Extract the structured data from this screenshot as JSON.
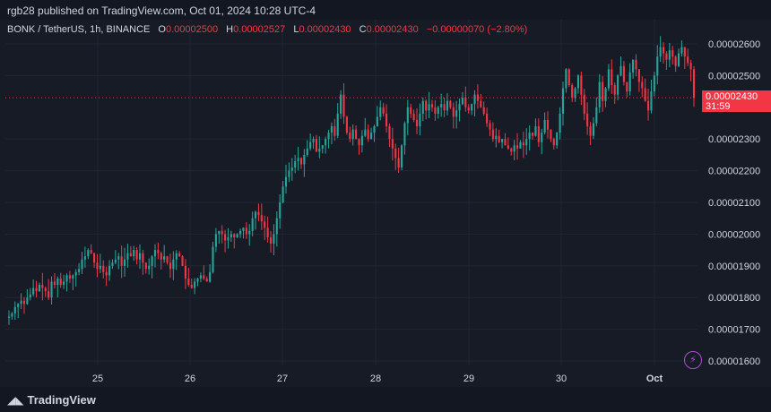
{
  "header": {
    "published": "rgb28 published on TradingView.com, Oct 01, 2024 10:28 UTC-4"
  },
  "legend": {
    "symbol": "BONK / TetherUS, 1h, BINANCE",
    "o_label": "O",
    "o_value": "0.00002500",
    "h_label": "H",
    "h_value": "0.00002527",
    "l_label": "L",
    "l_value": "0.00002430",
    "c_label": "C",
    "c_value": "0.00002430",
    "change": "−0.00000070 (−2.80%)"
  },
  "price_tag": {
    "price": "0.00002430",
    "countdown": "31:59"
  },
  "footer": {
    "brand": "TradingView"
  },
  "colors": {
    "up": "#26a69a",
    "down": "#f23645",
    "background": "#171b26",
    "grid": "#222633",
    "text": "#d1d4dc"
  },
  "icons": {
    "brand": "tradingview-logo-icon",
    "alert": "lightning-icon"
  },
  "chart_data": {
    "type": "candlestick",
    "x_ticks": [
      "25",
      "26",
      "27",
      "28",
      "29",
      "30",
      "Oct"
    ],
    "y_ticks": [
      "0.00002600",
      "0.00002500",
      "0.00002300",
      "0.00002200",
      "0.00002100",
      "0.00002000",
      "0.00001900",
      "0.00001800",
      "0.00001700",
      "0.00001600"
    ],
    "ylim": [
      1.57e-05,
      2.65e-05
    ],
    "last_price": 2.43e-05,
    "grid": true,
    "closes": [
      1.74,
      1.75,
      1.77,
      1.78,
      1.79,
      1.78,
      1.8,
      1.81,
      1.83,
      1.82,
      1.84,
      1.83,
      1.82,
      1.8,
      1.85,
      1.84,
      1.86,
      1.84,
      1.85,
      1.87,
      1.86,
      1.87,
      1.88,
      1.89,
      1.92,
      1.93,
      1.95,
      1.94,
      1.91,
      1.89,
      1.9,
      1.88,
      1.87,
      1.9,
      1.91,
      1.92,
      1.93,
      1.9,
      1.92,
      1.94,
      1.93,
      1.95,
      1.92,
      1.94,
      1.91,
      1.89,
      1.9,
      1.93,
      1.95,
      1.94,
      1.92,
      1.93,
      1.91,
      1.89,
      1.92,
      1.94,
      1.93,
      1.9,
      1.86,
      1.84,
      1.83,
      1.85,
      1.86,
      1.87,
      1.86,
      1.85,
      1.88,
      1.96,
      2.0,
      2.01,
      2.0,
      1.98,
      1.99,
      2.0,
      1.99,
      2.0,
      2.01,
      2.02,
      2.0,
      2.01,
      2.05,
      2.07,
      2.06,
      2.04,
      2.02,
      1.99,
      1.97,
      2.0,
      2.05,
      2.1,
      2.15,
      2.18,
      2.2,
      2.21,
      2.23,
      2.24,
      2.22,
      2.25,
      2.27,
      2.29,
      2.3,
      2.26,
      2.27,
      2.28,
      2.3,
      2.32,
      2.34,
      2.31,
      2.38,
      2.44,
      2.37,
      2.32,
      2.3,
      2.33,
      2.3,
      2.28,
      2.31,
      2.33,
      2.3,
      2.32,
      2.34,
      2.37,
      2.4,
      2.38,
      2.34,
      2.3,
      2.27,
      2.24,
      2.21,
      2.28,
      2.35,
      2.4,
      2.38,
      2.36,
      2.34,
      2.38,
      2.42,
      2.39,
      2.41,
      2.4,
      2.38,
      2.4,
      2.41,
      2.39,
      2.42,
      2.4,
      2.37,
      2.39,
      2.41,
      2.43,
      2.4,
      2.39,
      2.41,
      2.44,
      2.42,
      2.4,
      2.38,
      2.35,
      2.33,
      2.3,
      2.31,
      2.29,
      2.3,
      2.28,
      2.27,
      2.26,
      2.28,
      2.27,
      2.29,
      2.28,
      2.3,
      2.32,
      2.31,
      2.34,
      2.29,
      2.32,
      2.36,
      2.33,
      2.3,
      2.28,
      2.32,
      2.38,
      2.46,
      2.52,
      2.47,
      2.43,
      2.46,
      2.5,
      2.44,
      2.38,
      2.34,
      2.31,
      2.35,
      2.4,
      2.48,
      2.42,
      2.46,
      2.52,
      2.47,
      2.44,
      2.5,
      2.53,
      2.48,
      2.45,
      2.51,
      2.55,
      2.52,
      2.48,
      2.46,
      2.42,
      2.39,
      2.45,
      2.5,
      2.56,
      2.59,
      2.57,
      2.55,
      2.58,
      2.56,
      2.53,
      2.57,
      2.59,
      2.56,
      2.54,
      2.52,
      2.43
    ]
  }
}
